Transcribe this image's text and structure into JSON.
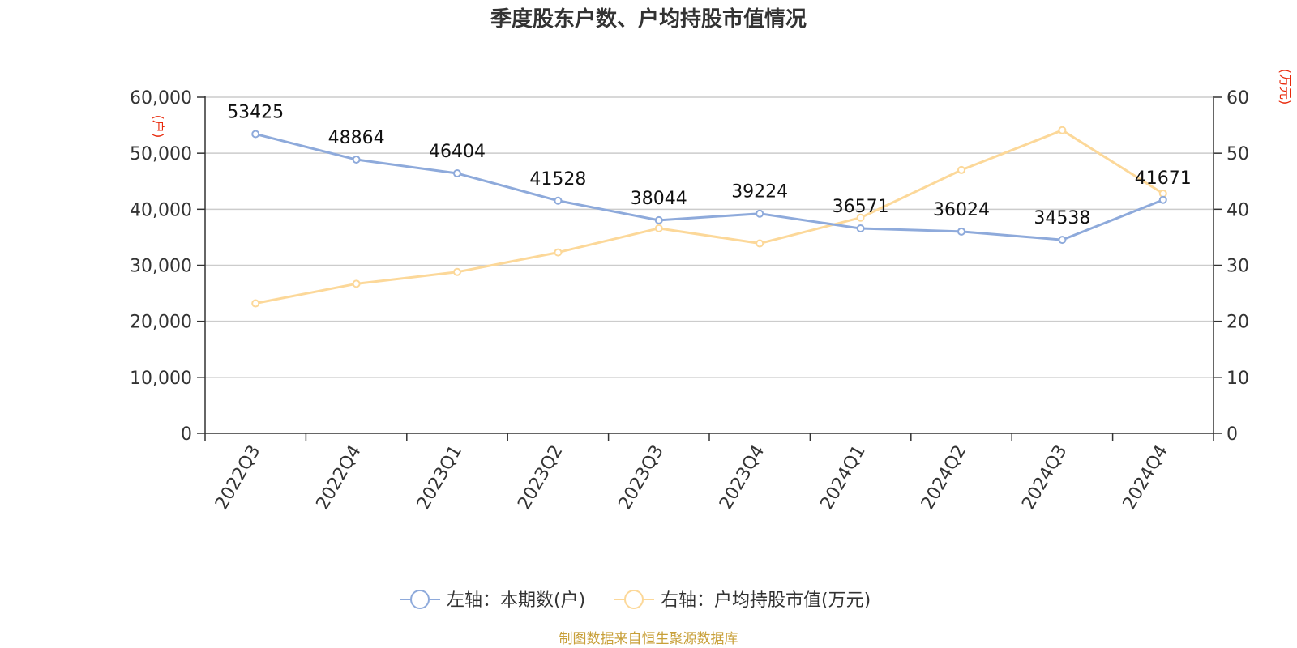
{
  "chart_data": {
    "type": "line",
    "title": "季度股东户数、户均持股市值情况",
    "categories": [
      "2022Q3",
      "2022Q4",
      "2023Q1",
      "2023Q2",
      "2023Q3",
      "2023Q4",
      "2024Q1",
      "2024Q2",
      "2024Q3",
      "2024Q4"
    ],
    "left_axis": {
      "unit": "(户)",
      "ylim": [
        0,
        60000
      ],
      "ticks": [
        "0",
        "10,000",
        "20,000",
        "30,000",
        "40,000",
        "50,000",
        "60,000"
      ]
    },
    "right_axis": {
      "unit": "(万元)",
      "ylim": [
        0,
        60
      ],
      "ticks": [
        "0",
        "10",
        "20",
        "30",
        "40",
        "50",
        "60"
      ]
    },
    "series": [
      {
        "name": "左轴：本期数(户)",
        "axis": "left",
        "color": "#8eaadb",
        "values": [
          53425,
          48864,
          46404,
          41528,
          38044,
          39224,
          36571,
          36024,
          34538,
          41671
        ],
        "labels": [
          "53425",
          "48864",
          "46404",
          "41528",
          "38044",
          "39224",
          "36571",
          "36024",
          "34538",
          "41671"
        ]
      },
      {
        "name": "右轴：户均持股市值(万元)",
        "axis": "right",
        "color": "#fcd899",
        "values": [
          23.2,
          26.7,
          28.8,
          32.3,
          36.6,
          33.9,
          38.5,
          47.0,
          54.1,
          42.8
        ]
      }
    ],
    "grid": true,
    "legend_position": "bottom-center",
    "grid_color": "#cccccc"
  },
  "source": "制图数据来自恒生聚源数据库"
}
